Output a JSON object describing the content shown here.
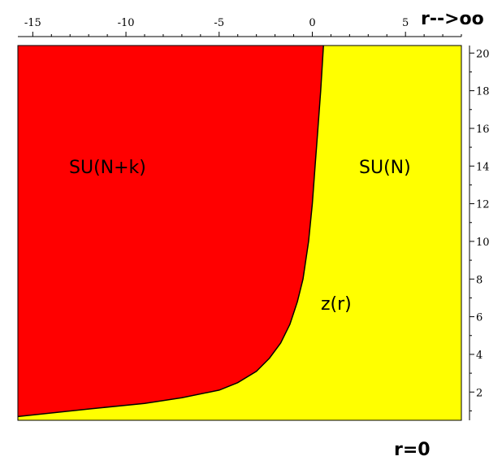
{
  "plot": {
    "x_range": [
      -15.8,
      8
    ],
    "y_range": [
      0.5,
      20.4
    ],
    "x_ticks": [
      -15,
      -10,
      -5,
      0,
      5
    ],
    "x_tick_labels": [
      "-15",
      "-10",
      "-5",
      "0",
      "5"
    ],
    "y_ticks": [
      2,
      4,
      6,
      8,
      10,
      12,
      14,
      16,
      18,
      20
    ],
    "y_tick_labels": [
      "2",
      "4",
      "6",
      "8",
      "10",
      "12",
      "14",
      "16",
      "18",
      "20"
    ],
    "boundary_curve": [
      [
        -15.8,
        0.7
      ],
      [
        -12,
        1.1
      ],
      [
        -9,
        1.4
      ],
      [
        -7,
        1.7
      ],
      [
        -5,
        2.1
      ],
      [
        -4,
        2.5
      ],
      [
        -3,
        3.1
      ],
      [
        -2.3,
        3.8
      ],
      [
        -1.7,
        4.6
      ],
      [
        -1.2,
        5.6
      ],
      [
        -0.8,
        6.8
      ],
      [
        -0.5,
        8.0
      ],
      [
        -0.2,
        10.0
      ],
      [
        0.0,
        12.0
      ],
      [
        0.15,
        14.0
      ],
      [
        0.3,
        16.0
      ],
      [
        0.45,
        18.0
      ],
      [
        0.6,
        20.4
      ]
    ],
    "colors": {
      "left_region": "#ff0000",
      "right_region": "#ffff00",
      "curve": "#000000"
    }
  },
  "labels": {
    "left_region": "SU(N+k)",
    "right_region": "SU(N)",
    "curve": "z(r)",
    "top_right": "r-->oo",
    "bottom_right": "r=0"
  }
}
